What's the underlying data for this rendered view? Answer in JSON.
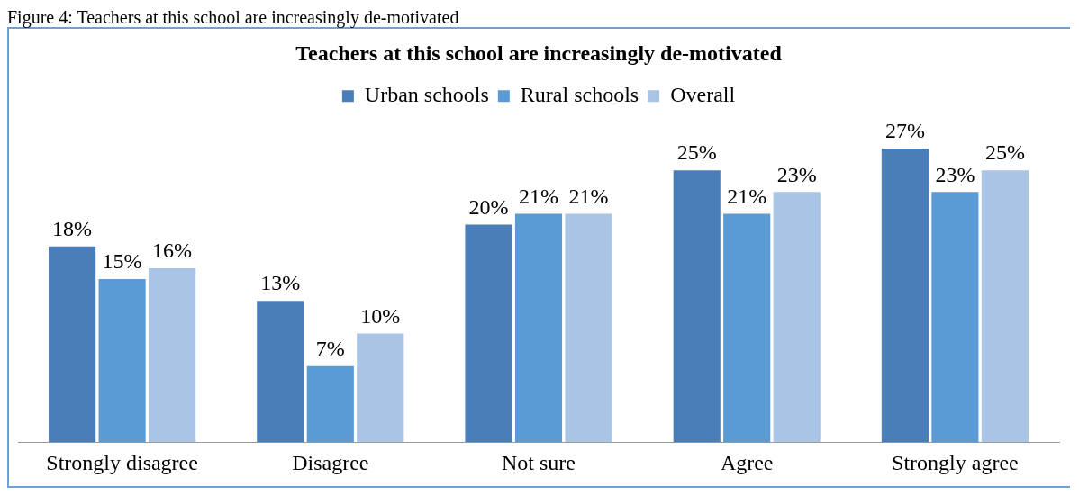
{
  "chart_data": {
    "type": "bar",
    "title": "Teachers at this school are increasingly de-motivated",
    "annotations": [
      "Figure 4: Teachers at this school are increasingly de-motivated"
    ],
    "categories": [
      "Strongly disagree",
      "Disagree",
      "Not sure",
      "Agree",
      "Strongly agree"
    ],
    "series": [
      {
        "name": "Urban schools",
        "color": "#4a7eb8",
        "values": [
          18,
          13,
          20,
          25,
          27
        ],
        "value_labels": [
          "18%",
          "13%",
          "20%",
          "25%",
          "27%"
        ]
      },
      {
        "name": "Rural schools",
        "color": "#5b9bd5",
        "values": [
          15,
          7,
          21,
          21,
          23
        ],
        "value_labels": [
          "15%",
          "7%",
          "21%",
          "21%",
          "23%"
        ]
      },
      {
        "name": "Overall",
        "color": "#a9c4e4",
        "values": [
          16,
          10,
          21,
          23,
          25
        ],
        "value_labels": [
          "16%",
          "10%",
          "21%",
          "23%",
          "25%"
        ]
      }
    ],
    "legend": "top",
    "grid": false
  }
}
